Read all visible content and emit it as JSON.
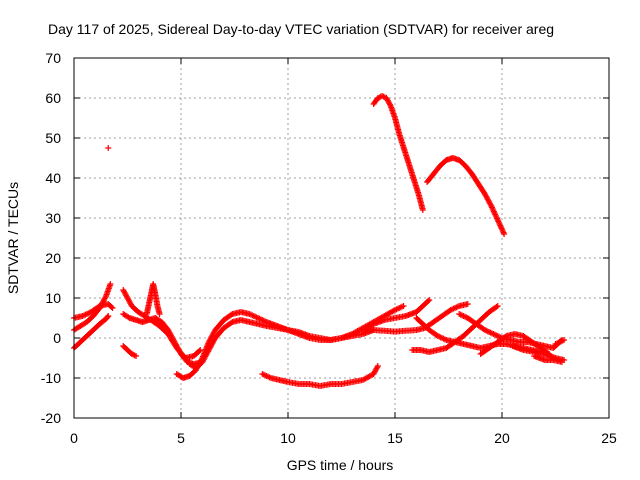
{
  "chart_data": {
    "type": "scatter",
    "title": "Day 117 of 2025, Sidereal Day-to-day VTEC variation (SDTVAR) for receiver areg",
    "xlabel": "GPS time / hours",
    "ylabel": "SDTVAR / TECUs",
    "xlim": [
      0,
      25
    ],
    "ylim": [
      -20,
      70
    ],
    "xticks": [
      0,
      5,
      10,
      15,
      20,
      25
    ],
    "yticks": [
      -20,
      -10,
      0,
      10,
      20,
      30,
      40,
      50,
      60,
      70
    ],
    "grid": true,
    "marker": "+",
    "series": [
      {
        "name": "SDTVAR",
        "color": "#ff0000",
        "tracks": [
          {
            "x": [
              0.0,
              0.3,
              0.6,
              0.9,
              1.2,
              1.5,
              1.6
            ],
            "y": [
              -2.5,
              -1.0,
              0.5,
              2.0,
              3.5,
              4.8,
              5.5
            ]
          },
          {
            "x": [
              0.0,
              0.3,
              0.6,
              0.9,
              1.2,
              1.5,
              1.7
            ],
            "y": [
              2.0,
              3.0,
              4.0,
              5.5,
              7.5,
              10.5,
              13.5
            ]
          },
          {
            "x": [
              0.0,
              0.4,
              0.8,
              1.2,
              1.6,
              1.8
            ],
            "y": [
              5.0,
              5.5,
              6.5,
              8.0,
              8.5,
              7.5
            ]
          },
          {
            "x": [
              1.6
            ],
            "y": [
              47.5
            ]
          },
          {
            "x": [
              2.3,
              2.5,
              2.7,
              3.0,
              3.3,
              3.6,
              4.0,
              4.4,
              4.8,
              5.2,
              5.6,
              5.9
            ],
            "y": [
              12.0,
              10.0,
              8.0,
              6.5,
              5.5,
              4.5,
              3.0,
              1.0,
              -2.5,
              -5.0,
              -4.5,
              -3.0
            ]
          },
          {
            "x": [
              2.3,
              2.6,
              2.9,
              3.2,
              3.5,
              3.8,
              4.1,
              4.4,
              4.7,
              5.0,
              5.3,
              5.6,
              6.0
            ],
            "y": [
              6.0,
              5.0,
              4.5,
              4.0,
              4.5,
              5.0,
              4.0,
              2.0,
              -1.0,
              -4.0,
              -6.0,
              -6.5,
              -6.0
            ]
          },
          {
            "x": [
              3.4,
              3.5,
              3.6,
              3.7,
              3.8,
              3.9,
              4.0
            ],
            "y": [
              6.0,
              8.5,
              11.0,
              13.5,
              11.0,
              8.0,
              6.0
            ]
          },
          {
            "x": [
              2.3,
              2.5,
              2.7,
              2.9
            ],
            "y": [
              -2.0,
              -3.0,
              -4.0,
              -4.5
            ]
          },
          {
            "x": [
              4.8,
              5.1,
              5.4,
              5.7,
              6.0,
              6.3,
              6.6,
              7.0,
              7.4,
              7.8,
              8.2,
              8.6,
              9.0,
              9.5,
              10.0,
              10.5,
              11.0,
              11.5,
              12.0,
              12.5,
              13.0,
              13.5,
              14.0,
              14.5,
              15.0,
              15.4
            ],
            "y": [
              -9.0,
              -10.0,
              -9.5,
              -8.0,
              -5.0,
              -1.0,
              2.0,
              4.5,
              6.0,
              6.5,
              6.0,
              5.0,
              4.0,
              3.0,
              2.0,
              1.0,
              0.0,
              -0.5,
              -0.5,
              0.0,
              1.0,
              2.5,
              4.0,
              5.5,
              7.0,
              8.0
            ]
          },
          {
            "x": [
              5.4,
              5.7,
              6.0,
              6.3,
              6.6,
              7.0,
              7.4,
              7.8,
              8.2,
              8.6,
              9.0,
              9.5,
              10.0,
              10.5,
              11.0,
              11.5,
              12.0,
              12.5,
              13.0,
              13.5,
              14.0
            ],
            "y": [
              -6.5,
              -7.5,
              -6.0,
              -3.0,
              0.0,
              2.5,
              4.0,
              4.5,
              4.0,
              3.5,
              3.0,
              2.5,
              2.0,
              1.5,
              0.5,
              0.0,
              -0.5,
              0.0,
              0.5,
              1.0,
              2.0
            ]
          },
          {
            "x": [
              8.8,
              9.2,
              9.6,
              10.0,
              10.5,
              11.0,
              11.5,
              12.0,
              12.5,
              13.0,
              13.5,
              14.0,
              14.2
            ],
            "y": [
              -9.0,
              -10.0,
              -10.5,
              -11.0,
              -11.5,
              -11.5,
              -12.0,
              -11.5,
              -11.5,
              -11.0,
              -10.5,
              -9.0,
              -7.0
            ]
          },
          {
            "x": [
              13.5,
              14.0,
              14.5,
              15.0,
              15.5,
              16.0,
              16.3,
              16.6
            ],
            "y": [
              2.0,
              3.5,
              4.5,
              5.0,
              5.5,
              6.5,
              8.0,
              9.5
            ]
          },
          {
            "x": [
              13.5,
              14.0,
              14.5,
              15.0,
              15.5,
              16.0,
              16.4,
              16.8,
              17.2,
              17.6,
              18.0,
              18.4
            ],
            "y": [
              2.0,
              2.0,
              1.8,
              1.6,
              1.8,
              2.0,
              2.5,
              4.0,
              5.5,
              7.0,
              8.0,
              8.5
            ]
          },
          {
            "x": [
              14.0,
              14.2,
              14.4,
              14.6,
              14.8,
              15.0,
              15.2,
              15.5,
              15.8,
              16.1,
              16.3
            ],
            "y": [
              58.5,
              60.0,
              60.5,
              60.0,
              58.0,
              55.0,
              51.0,
              46.0,
              41.0,
              36.0,
              32.0
            ]
          },
          {
            "x": [
              16.5,
              16.8,
              17.1,
              17.4,
              17.7,
              18.0,
              18.3,
              18.6,
              18.9,
              19.2,
              19.5,
              19.8,
              20.1
            ],
            "y": [
              39.0,
              41.0,
              43.0,
              44.5,
              45.0,
              44.5,
              43.0,
              41.0,
              38.5,
              36.0,
              33.0,
              29.5,
              26.0
            ]
          },
          {
            "x": [
              16.0,
              16.3,
              16.6,
              17.0,
              17.4,
              17.8,
              18.2,
              18.6,
              19.0,
              19.4,
              19.8,
              20.2,
              20.6,
              21.0,
              21.4,
              21.8,
              22.2
            ],
            "y": [
              5.0,
              3.5,
              2.0,
              0.5,
              -0.5,
              -1.0,
              -1.5,
              -2.0,
              -2.5,
              -2.0,
              -1.5,
              -1.5,
              -2.0,
              -2.5,
              -3.0,
              -3.5,
              -4.0
            ]
          },
          {
            "x": [
              15.8,
              16.2,
              16.6,
              17.0,
              17.4,
              17.8,
              18.2,
              18.6,
              19.0,
              19.4,
              19.8
            ],
            "y": [
              -3.0,
              -3.0,
              -3.5,
              -3.0,
              -2.5,
              -1.0,
              0.5,
              2.5,
              4.5,
              6.5,
              8.0
            ]
          },
          {
            "x": [
              18.0,
              18.4,
              18.8,
              19.2,
              19.6,
              20.0,
              20.4,
              20.8,
              21.2,
              21.6,
              22.0,
              22.4,
              22.8
            ],
            "y": [
              6.0,
              5.0,
              3.5,
              2.0,
              1.0,
              0.0,
              -0.5,
              -1.0,
              -1.0,
              -1.5,
              -2.0,
              -2.5,
              -0.5
            ]
          },
          {
            "x": [
              19.0,
              19.4,
              19.8,
              20.2,
              20.6,
              21.0,
              21.4,
              21.8,
              22.2
            ],
            "y": [
              -4.0,
              -2.5,
              -1.0,
              0.5,
              1.0,
              0.5,
              -1.0,
              -2.5,
              -4.0
            ]
          },
          {
            "x": [
              20.5,
              21.0,
              21.5,
              22.0,
              22.5,
              22.9
            ],
            "y": [
              -2.0,
              -3.0,
              -3.5,
              -4.0,
              -5.0,
              -5.5
            ]
          },
          {
            "x": [
              21.5,
              22.0,
              22.4,
              22.8
            ],
            "y": [
              -4.5,
              -5.5,
              -5.5,
              -6.0
            ]
          },
          {
            "x": [
              22.5,
              22.7,
              22.9
            ],
            "y": [
              -1.5,
              -1.0,
              -0.5
            ]
          }
        ]
      }
    ]
  }
}
